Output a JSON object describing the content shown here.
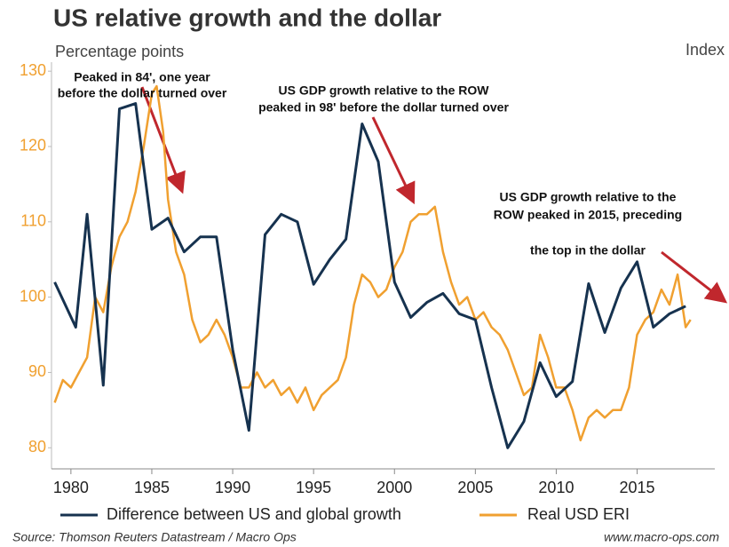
{
  "chart_data": {
    "type": "line",
    "title": "US relative growth and the dollar",
    "y_label": "Percentage points",
    "y2_label": "Index",
    "source": "Source: Thomson Reuters Datastream / Macro Ops",
    "website": "www.macro-ops.com",
    "annotations": [
      [
        "Peaked in 84', one year",
        "before the dollar turned over"
      ],
      [
        "US GDP growth relative to the ROW",
        "peaked in 98' before the dollar turned over"
      ],
      [
        "US GDP growth relative to the",
        "ROW peaked in 2015, preceding",
        "the top in the dollar"
      ]
    ],
    "xlim": [
      1978.8,
      2019.8
    ],
    "xticks": [
      1980,
      1985,
      1990,
      1995,
      2000,
      2005,
      2010,
      2015
    ],
    "ylim": [
      77.2,
      131.2
    ],
    "yticks": [
      80,
      90,
      100,
      110,
      120,
      130
    ],
    "ytick_color": "#f0a030",
    "grid": false,
    "series": [
      {
        "name": "Difference between US and global growth",
        "color": "#16324f",
        "x": [
          1979,
          1980.3,
          1981,
          1982,
          1983,
          1984,
          1985,
          1986,
          1987,
          1988,
          1989,
          1990,
          1991,
          1992,
          1993,
          1994,
          1995,
          1996,
          1997,
          1998,
          1999,
          2000,
          2001,
          2002,
          2003,
          2004,
          2005,
          2006,
          2007,
          2008,
          2009,
          2010,
          2011,
          2012,
          2013,
          2014,
          2015,
          2016,
          2017,
          2018
        ],
        "values": [
          102,
          96,
          111,
          88.3,
          125,
          125.7,
          109,
          110.5,
          106,
          108,
          108,
          93,
          82.3,
          108.3,
          111,
          110,
          101.7,
          105,
          107.7,
          123,
          118,
          102,
          97.3,
          99.3,
          100.5,
          97.8,
          97,
          88,
          80,
          83.5,
          91.3,
          86.8,
          88.8,
          101.8,
          95.3,
          101.2,
          104.7,
          96,
          97.8,
          98.8
        ]
      },
      {
        "name": "Real USD ERI",
        "color": "#f0a030",
        "x": [
          1979,
          1979.5,
          1980,
          1980.5,
          1981,
          1981.5,
          1982,
          1982.5,
          1983,
          1983.5,
          1984,
          1984.5,
          1985,
          1985.3,
          1985.7,
          1986,
          1986.5,
          1987,
          1987.5,
          1988,
          1988.5,
          1989,
          1989.5,
          1990,
          1990.5,
          1991,
          1991.5,
          1992,
          1992.5,
          1993,
          1993.5,
          1994,
          1994.5,
          1995,
          1995.5,
          1996,
          1996.5,
          1997,
          1997.5,
          1998,
          1998.5,
          1999,
          1999.5,
          2000,
          2000.5,
          2001,
          2001.5,
          2002,
          2002.5,
          2003,
          2003.5,
          2004,
          2004.5,
          2005,
          2005.5,
          2006,
          2006.5,
          2007,
          2007.5,
          2008,
          2008.5,
          2009,
          2009.5,
          2010,
          2010.5,
          2011,
          2011.5,
          2012,
          2012.5,
          2013,
          2013.5,
          2014,
          2014.5,
          2015,
          2015.5,
          2016,
          2016.5,
          2017,
          2017.5,
          2018,
          2018.3
        ],
        "values": [
          86,
          89,
          88,
          90,
          92,
          100,
          98,
          104,
          108,
          110,
          114,
          120,
          127,
          128,
          122,
          113,
          106,
          103,
          97,
          94,
          95,
          97,
          95,
          92,
          88,
          88,
          90,
          88,
          89,
          87,
          88,
          86,
          88,
          85,
          87,
          88,
          89,
          92,
          99,
          103,
          102,
          100,
          101,
          104,
          106,
          110,
          111,
          111,
          112,
          106,
          102,
          99,
          100,
          97,
          98,
          96,
          95,
          93,
          90,
          87,
          88,
          95,
          92,
          88,
          88,
          85,
          81,
          84,
          85,
          84,
          85,
          85,
          88,
          95,
          97,
          98,
          101,
          99,
          103,
          96,
          97
        ]
      }
    ]
  }
}
